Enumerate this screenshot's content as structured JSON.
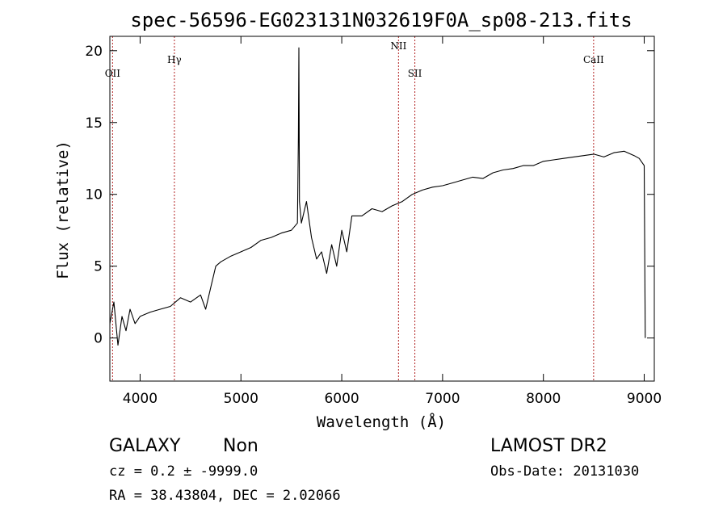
{
  "chart_data": {
    "type": "line",
    "title": "spec-56596-EG023131N032619F0A_sp08-213.fits",
    "xlabel": "Wavelength (Å)",
    "ylabel": "Flux (relative)",
    "xlim": [
      3700,
      9100
    ],
    "ylim": [
      -3,
      21
    ],
    "x_ticks": [
      "4000",
      "5000",
      "6000",
      "7000",
      "8000",
      "9000"
    ],
    "y_ticks": [
      "0",
      "5",
      "10",
      "15",
      "20"
    ],
    "x_tick_values": [
      4000,
      5000,
      6000,
      7000,
      8000,
      9000
    ],
    "y_tick_values": [
      0,
      5,
      10,
      15,
      20
    ],
    "grid": false,
    "line_color": "#000000",
    "marker_color": "#b22222",
    "series": [
      {
        "x": [
          3700,
          3740,
          3780,
          3820,
          3860,
          3900,
          3950,
          4000,
          4100,
          4200,
          4300,
          4400,
          4500,
          4600,
          4650,
          4700,
          4750,
          4800,
          4900,
          5000,
          5100,
          5200,
          5300,
          5400,
          5500,
          5560,
          5570,
          5575,
          5580,
          5600,
          5650,
          5700,
          5750,
          5800,
          5850,
          5900,
          5950,
          6000,
          6050,
          6100,
          6200,
          6300,
          6400,
          6500,
          6600,
          6700,
          6800,
          6900,
          7000,
          7100,
          7200,
          7300,
          7400,
          7500,
          7600,
          7700,
          7800,
          7900,
          8000,
          8100,
          8200,
          8300,
          8400,
          8500,
          8600,
          8700,
          8800,
          8900,
          8950,
          9000,
          9010
        ],
        "y": [
          1.0,
          2.5,
          -0.5,
          1.5,
          0.5,
          2.0,
          1.0,
          1.5,
          1.8,
          2.0,
          2.2,
          2.8,
          2.5,
          3.0,
          2.0,
          3.5,
          5.0,
          5.3,
          5.7,
          6.0,
          6.3,
          6.8,
          7.0,
          7.3,
          7.5,
          8.0,
          14.0,
          20.2,
          9.5,
          8.0,
          9.5,
          7.0,
          5.5,
          6.0,
          4.5,
          6.5,
          5.0,
          7.5,
          6.0,
          8.5,
          8.5,
          9.0,
          8.8,
          9.2,
          9.5,
          10.0,
          10.3,
          10.5,
          10.6,
          10.8,
          11.0,
          11.2,
          11.1,
          11.5,
          11.7,
          11.8,
          12.0,
          12.0,
          12.3,
          12.4,
          12.5,
          12.6,
          12.7,
          12.8,
          12.6,
          12.9,
          13.0,
          12.7,
          12.5,
          12.0,
          0.0
        ]
      }
    ],
    "line_markers": [
      {
        "label": "OII",
        "x": 3727,
        "label_level": "low"
      },
      {
        "label": "Hγ",
        "x": 4340,
        "label_level": "high"
      },
      {
        "label": "NII",
        "x": 6563,
        "label_level": "top"
      },
      {
        "label": "SII",
        "x": 6725,
        "label_level": "low"
      },
      {
        "label": "CaII",
        "x": 8498,
        "label_level": "high"
      }
    ]
  },
  "info": {
    "object_class": "GALAXY",
    "subclass": "Non",
    "survey": "LAMOST DR2",
    "cz_line": "cz = 0.2 ± -9999.0",
    "obs_date_line": "Obs-Date: 20131030",
    "coords_line": "RA =  38.43804, DEC =   2.02066"
  }
}
